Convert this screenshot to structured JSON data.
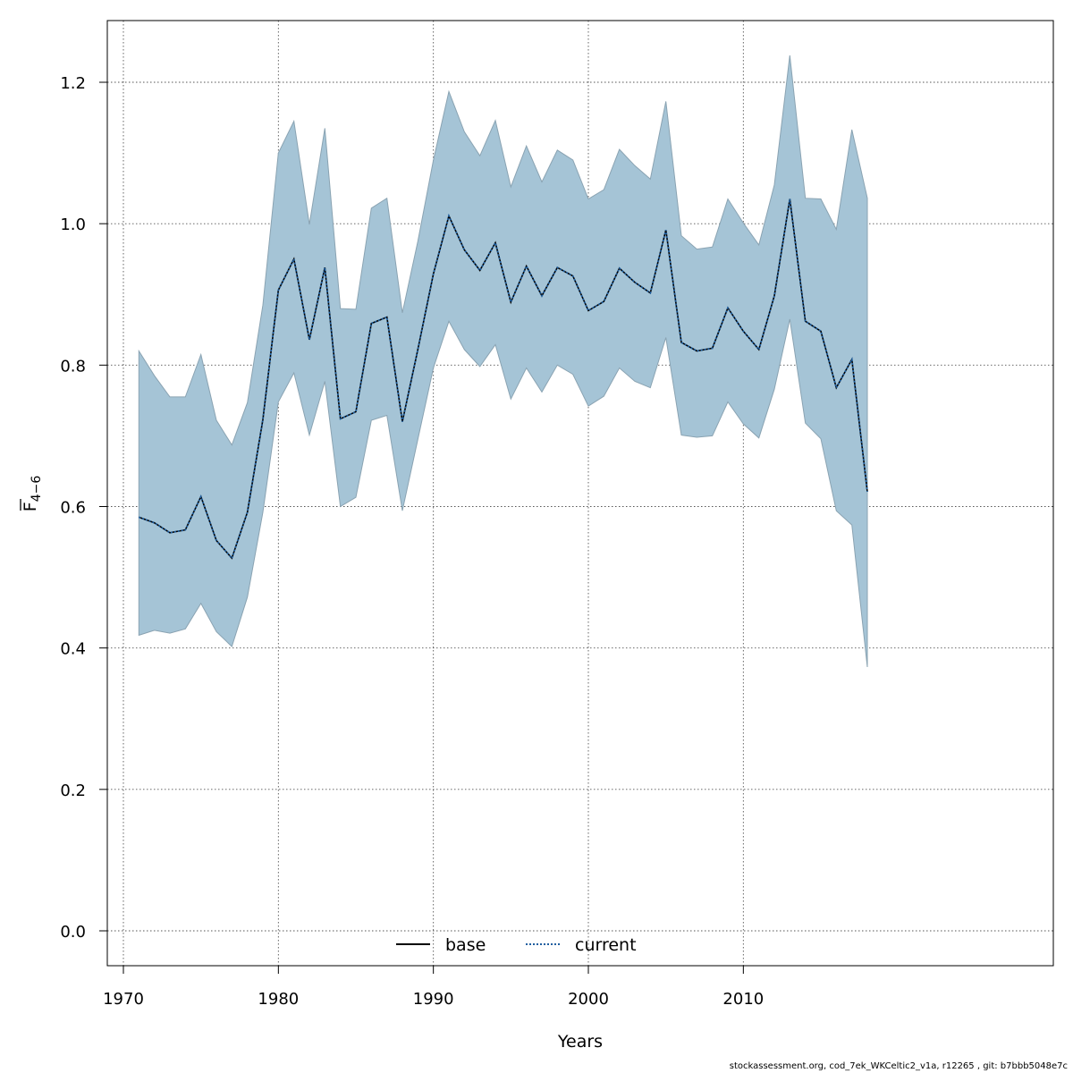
{
  "chart_data": {
    "type": "line",
    "xlabel": "Years",
    "ylabel_main": "F",
    "ylabel_sub": "4−6",
    "xlim": [
      1970,
      2019
    ],
    "ylim": [
      0,
      1.25
    ],
    "xticks": [
      1970,
      1980,
      1990,
      2000,
      2010
    ],
    "yticks": [
      0.0,
      0.2,
      0.4,
      0.6,
      0.8,
      1.0,
      1.2
    ],
    "ytick_labels": [
      "0.0",
      "0.2",
      "0.4",
      "0.6",
      "0.8",
      "1.0",
      "1.2"
    ],
    "grid": true,
    "legend_position": "bottom-center",
    "x": [
      1971,
      1972,
      1973,
      1974,
      1975,
      1976,
      1977,
      1978,
      1979,
      1980,
      1981,
      1982,
      1983,
      1984,
      1985,
      1986,
      1987,
      1988,
      1989,
      1990,
      1991,
      1992,
      1993,
      1994,
      1995,
      1996,
      1997,
      1998,
      1999,
      2000,
      2001,
      2002,
      2003,
      2004,
      2005,
      2006,
      2007,
      2008,
      2009,
      2010,
      2011,
      2012,
      2013,
      2014,
      2015,
      2016,
      2017,
      2018
    ],
    "series": [
      {
        "name": "base",
        "style": "solid",
        "color": "#000000",
        "values": [
          0.585,
          0.577,
          0.563,
          0.567,
          0.614,
          0.552,
          0.527,
          0.592,
          0.723,
          0.906,
          0.95,
          0.836,
          0.938,
          0.724,
          0.734,
          0.859,
          0.868,
          0.72,
          0.822,
          0.929,
          1.011,
          0.963,
          0.934,
          0.973,
          0.889,
          0.94,
          0.898,
          0.938,
          0.926,
          0.877,
          0.89,
          0.937,
          0.917,
          0.902,
          0.991,
          0.832,
          0.82,
          0.824,
          0.881,
          0.848,
          0.822,
          0.898,
          1.035,
          0.862,
          0.848,
          0.768,
          0.808,
          0.621
        ]
      },
      {
        "name": "current",
        "style": "dotted",
        "color": "#1f5fa0",
        "values": [
          0.585,
          0.577,
          0.563,
          0.567,
          0.614,
          0.552,
          0.527,
          0.592,
          0.723,
          0.906,
          0.95,
          0.836,
          0.938,
          0.724,
          0.734,
          0.859,
          0.868,
          0.72,
          0.822,
          0.929,
          1.011,
          0.963,
          0.934,
          0.973,
          0.889,
          0.94,
          0.898,
          0.938,
          0.926,
          0.877,
          0.89,
          0.937,
          0.917,
          0.902,
          0.991,
          0.832,
          0.82,
          0.824,
          0.881,
          0.848,
          0.822,
          0.898,
          1.035,
          0.862,
          0.848,
          0.768,
          0.808,
          0.621
        ]
      }
    ],
    "confidence_band": {
      "color": "#a5c4d6",
      "lower": [
        0.418,
        0.425,
        0.421,
        0.427,
        0.463,
        0.423,
        0.402,
        0.472,
        0.592,
        0.748,
        0.789,
        0.701,
        0.777,
        0.6,
        0.613,
        0.722,
        0.729,
        0.594,
        0.695,
        0.796,
        0.862,
        0.822,
        0.798,
        0.829,
        0.752,
        0.796,
        0.762,
        0.8,
        0.787,
        0.742,
        0.756,
        0.796,
        0.777,
        0.768,
        0.839,
        0.701,
        0.698,
        0.7,
        0.748,
        0.717,
        0.697,
        0.766,
        0.865,
        0.718,
        0.696,
        0.594,
        0.574,
        0.373
      ],
      "upper": [
        0.82,
        0.785,
        0.755,
        0.755,
        0.815,
        0.722,
        0.687,
        0.747,
        0.885,
        1.1,
        1.145,
        0.999,
        1.135,
        0.88,
        0.879,
        1.022,
        1.036,
        0.874,
        0.975,
        1.09,
        1.187,
        1.13,
        1.096,
        1.146,
        1.052,
        1.11,
        1.059,
        1.104,
        1.09,
        1.035,
        1.048,
        1.105,
        1.082,
        1.063,
        1.173,
        0.983,
        0.964,
        0.967,
        1.035,
        1.001,
        0.97,
        1.055,
        1.238,
        1.036,
        1.035,
        0.992,
        1.133,
        1.036
      ]
    }
  },
  "footer": "stockassessment.org, cod_7ek_WKCeltic2_v1a, r12265 , git: b7bbb5048e7c"
}
